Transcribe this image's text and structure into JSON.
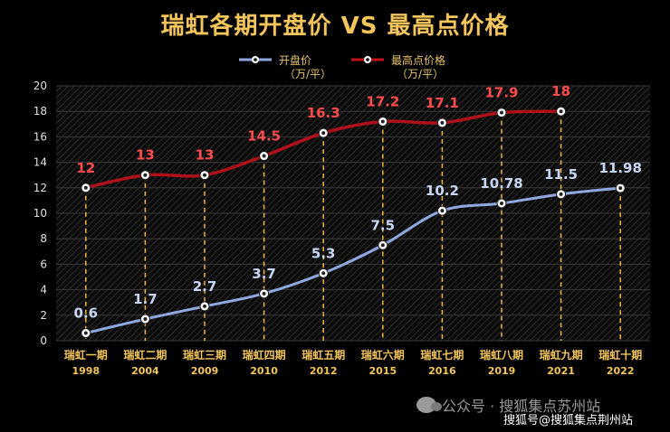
{
  "title": "瑞虹各期开盘价 VS 最高点价格",
  "legend": [
    {
      "name": "开盘价",
      "unit": "（万/平）",
      "color": "#8fa8e0"
    },
    {
      "name": "最高点价格",
      "unit": "（万/平）",
      "color": "#c0111a"
    }
  ],
  "watermark": {
    "line1": "公众号 · 搜狐集点苏州站",
    "line2": "搜狐号@搜狐集点荆州站"
  },
  "colors": {
    "open_line": "#8fa8e0",
    "open_label": "#c8d6f5",
    "high_line": "#b0101a",
    "high_label": "#ff4b4b",
    "axis_label": "#f4c55a",
    "dash": "#f2b544",
    "grid": "#3a3a3a"
  },
  "chart_data": {
    "type": "line",
    "title": "瑞虹各期开盘价 VS 最高点价格",
    "categories": [
      "瑞虹一期",
      "瑞虹二期",
      "瑞虹三期",
      "瑞虹四期",
      "瑞虹五期",
      "瑞虹六期",
      "瑞虹七期",
      "瑞虹八期",
      "瑞虹九期",
      "瑞虹十期"
    ],
    "years": [
      "1998",
      "2004",
      "2009",
      "2010",
      "2012",
      "2015",
      "2016",
      "2019",
      "2021",
      "2022"
    ],
    "series": [
      {
        "name": "开盘价",
        "values": [
          0.6,
          1.7,
          2.7,
          3.7,
          5.3,
          7.5,
          10.2,
          10.78,
          11.5,
          11.98
        ]
      },
      {
        "name": "最高点价格",
        "values": [
          12,
          13,
          13,
          14.5,
          16.3,
          17.2,
          17.1,
          17.9,
          18,
          null
        ]
      }
    ],
    "ylim": [
      0,
      20
    ],
    "yticks": [
      0,
      2,
      4,
      6,
      8,
      10,
      12,
      14,
      16,
      18,
      20
    ],
    "grid": true,
    "legend_position": "top-center"
  }
}
